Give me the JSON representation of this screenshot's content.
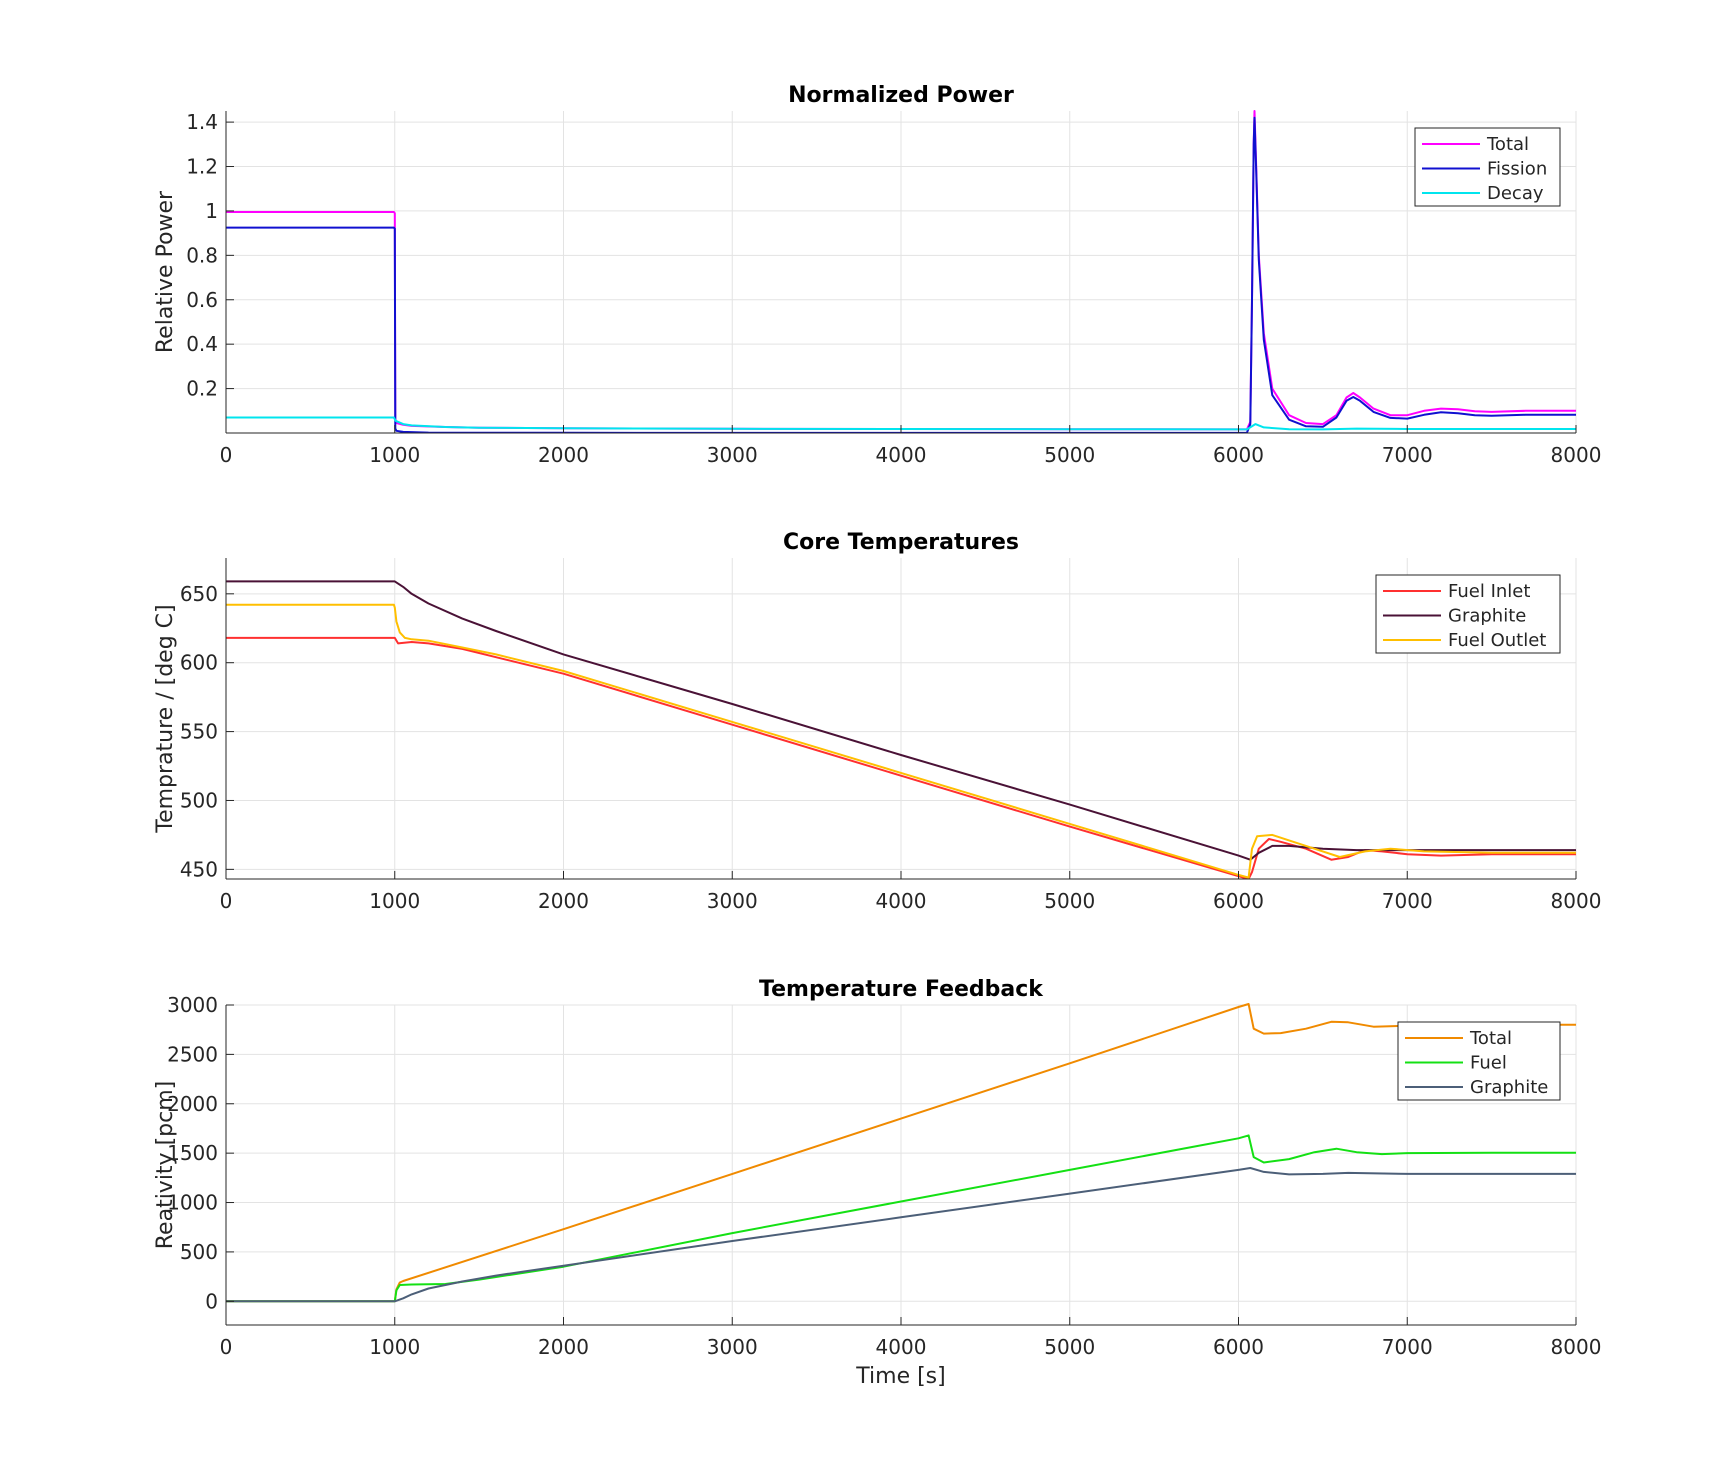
{
  "chart_data": [
    {
      "type": "line",
      "title": "Normalized Power",
      "xlabel": "",
      "ylabel": "Relative Power",
      "xlim": [
        0,
        8000
      ],
      "ylim": [
        0,
        1.45
      ],
      "xticks": [
        0,
        1000,
        2000,
        3000,
        4000,
        5000,
        6000,
        7000,
        8000
      ],
      "yticks": [
        0.2,
        0.4,
        0.6,
        0.8,
        1,
        1.2,
        1.4
      ],
      "ytick_labels": [
        "0.2",
        "0.4",
        "0.6",
        "0.8",
        "1",
        "1.2",
        "1.4"
      ],
      "grid": true,
      "legend_position": "top-right",
      "series": [
        {
          "name": "Total",
          "color": "#ff00ff",
          "points": [
            [
              0,
              0.995
            ],
            [
              995,
              0.995
            ],
            [
              1000,
              0.99
            ],
            [
              1003,
              0.06
            ],
            [
              1010,
              0.045
            ],
            [
              1050,
              0.037
            ],
            [
              1100,
              0.032
            ],
            [
              1300,
              0.027
            ],
            [
              1500,
              0.024
            ],
            [
              2000,
              0.021
            ],
            [
              3000,
              0.019
            ],
            [
              4000,
              0.018
            ],
            [
              5000,
              0.017
            ],
            [
              6000,
              0.016
            ],
            [
              6050,
              0.016
            ],
            [
              6070,
              0.05
            ],
            [
              6080,
              0.6
            ],
            [
              6090,
              1.3
            ],
            [
              6095,
              1.45
            ],
            [
              6105,
              1.2
            ],
            [
              6120,
              0.8
            ],
            [
              6150,
              0.45
            ],
            [
              6200,
              0.2
            ],
            [
              6300,
              0.08
            ],
            [
              6400,
              0.045
            ],
            [
              6500,
              0.04
            ],
            [
              6580,
              0.08
            ],
            [
              6640,
              0.16
            ],
            [
              6680,
              0.18
            ],
            [
              6720,
              0.16
            ],
            [
              6800,
              0.11
            ],
            [
              6900,
              0.08
            ],
            [
              7000,
              0.08
            ],
            [
              7100,
              0.1
            ],
            [
              7200,
              0.11
            ],
            [
              7300,
              0.107
            ],
            [
              7400,
              0.098
            ],
            [
              7500,
              0.095
            ],
            [
              7700,
              0.1
            ],
            [
              8000,
              0.1
            ]
          ]
        },
        {
          "name": "Fission",
          "color": "#1010d0",
          "points": [
            [
              0,
              0.925
            ],
            [
              995,
              0.925
            ],
            [
              1000,
              0.92
            ],
            [
              1003,
              0.02
            ],
            [
              1010,
              0.01
            ],
            [
              1050,
              0.005
            ],
            [
              1200,
              0.002
            ],
            [
              2000,
              0.001
            ],
            [
              5000,
              0.0005
            ],
            [
              6050,
              0.001
            ],
            [
              6070,
              0.04
            ],
            [
              6080,
              0.6
            ],
            [
              6090,
              1.3
            ],
            [
              6095,
              1.42
            ],
            [
              6105,
              1.18
            ],
            [
              6120,
              0.78
            ],
            [
              6150,
              0.42
            ],
            [
              6200,
              0.17
            ],
            [
              6300,
              0.06
            ],
            [
              6400,
              0.03
            ],
            [
              6500,
              0.028
            ],
            [
              6580,
              0.07
            ],
            [
              6640,
              0.145
            ],
            [
              6680,
              0.162
            ],
            [
              6720,
              0.145
            ],
            [
              6800,
              0.095
            ],
            [
              6900,
              0.068
            ],
            [
              7000,
              0.065
            ],
            [
              7100,
              0.082
            ],
            [
              7200,
              0.093
            ],
            [
              7300,
              0.089
            ],
            [
              7400,
              0.08
            ],
            [
              7500,
              0.078
            ],
            [
              7700,
              0.082
            ],
            [
              8000,
              0.082
            ]
          ]
        },
        {
          "name": "Decay",
          "color": "#00e5ee",
          "points": [
            [
              0,
              0.07
            ],
            [
              995,
              0.07
            ],
            [
              1005,
              0.055
            ],
            [
              1050,
              0.04
            ],
            [
              1100,
              0.034
            ],
            [
              1300,
              0.027
            ],
            [
              1500,
              0.024
            ],
            [
              2000,
              0.021
            ],
            [
              3000,
              0.019
            ],
            [
              4000,
              0.018
            ],
            [
              5000,
              0.017
            ],
            [
              6050,
              0.016
            ],
            [
              6100,
              0.04
            ],
            [
              6150,
              0.025
            ],
            [
              6300,
              0.017
            ],
            [
              6500,
              0.016
            ],
            [
              6700,
              0.02
            ],
            [
              7000,
              0.018
            ],
            [
              8000,
              0.018
            ]
          ]
        }
      ]
    },
    {
      "type": "line",
      "title": "Core Temperatures",
      "xlabel": "",
      "ylabel": "Temprature / [deg C]",
      "xlim": [
        0,
        8000
      ],
      "ylim": [
        443,
        676
      ],
      "xticks": [
        0,
        1000,
        2000,
        3000,
        4000,
        5000,
        6000,
        7000,
        8000
      ],
      "yticks": [
        450,
        500,
        550,
        600,
        650
      ],
      "ytick_labels": [
        "450",
        "500",
        "550",
        "600",
        "650"
      ],
      "grid": true,
      "legend_position": "top-right",
      "series": [
        {
          "name": "Fuel Inlet",
          "color": "#ff3030",
          "points": [
            [
              0,
              618
            ],
            [
              1000,
              618
            ],
            [
              1020,
              614
            ],
            [
              1100,
              615
            ],
            [
              1200,
              614
            ],
            [
              1400,
              610
            ],
            [
              1600,
              604
            ],
            [
              2000,
              592
            ],
            [
              3000,
              555
            ],
            [
              4000,
              518
            ],
            [
              5000,
              481
            ],
            [
              6000,
              445
            ],
            [
              6060,
              443
            ],
            [
              6080,
              448
            ],
            [
              6120,
              465
            ],
            [
              6180,
              472
            ],
            [
              6250,
              470
            ],
            [
              6400,
              465
            ],
            [
              6550,
              457
            ],
            [
              6650,
              459
            ],
            [
              6750,
              464
            ],
            [
              6850,
              463
            ],
            [
              7000,
              461
            ],
            [
              7200,
              460
            ],
            [
              7500,
              461
            ],
            [
              8000,
              461
            ]
          ]
        },
        {
          "name": "Graphite",
          "color": "#4a1236",
          "points": [
            [
              0,
              659
            ],
            [
              1000,
              659
            ],
            [
              1050,
              655
            ],
            [
              1100,
              650
            ],
            [
              1200,
              643
            ],
            [
              1400,
              632
            ],
            [
              1600,
              623
            ],
            [
              2000,
              606
            ],
            [
              3000,
              570
            ],
            [
              4000,
              533
            ],
            [
              5000,
              497
            ],
            [
              6000,
              460
            ],
            [
              6070,
              457
            ],
            [
              6120,
              462
            ],
            [
              6200,
              467
            ],
            [
              6300,
              467
            ],
            [
              6500,
              465
            ],
            [
              6700,
              464
            ],
            [
              7000,
              464
            ],
            [
              8000,
              464
            ]
          ]
        },
        {
          "name": "Fuel Outlet",
          "color": "#ffbf00",
          "points": [
            [
              0,
              642
            ],
            [
              995,
              642
            ],
            [
              1000,
              640
            ],
            [
              1010,
              630
            ],
            [
              1030,
              622
            ],
            [
              1060,
              618
            ],
            [
              1100,
              617
            ],
            [
              1200,
              616
            ],
            [
              1400,
              611
            ],
            [
              1600,
              606
            ],
            [
              2000,
              594
            ],
            [
              3000,
              557
            ],
            [
              4000,
              520
            ],
            [
              5000,
              483
            ],
            [
              6000,
              446
            ],
            [
              6060,
              444
            ],
            [
              6080,
              465
            ],
            [
              6110,
              474
            ],
            [
              6200,
              475
            ],
            [
              6300,
              471
            ],
            [
              6450,
              465
            ],
            [
              6600,
              459
            ],
            [
              6750,
              463
            ],
            [
              6900,
              465
            ],
            [
              7100,
              463
            ],
            [
              7500,
              462
            ],
            [
              8000,
              462
            ]
          ]
        }
      ]
    },
    {
      "type": "line",
      "title": "Temperature Feedback",
      "xlabel": "Time [s]",
      "ylabel": "Reativity [pcm]",
      "xlim": [
        0,
        8000
      ],
      "ylim": [
        -240,
        3000
      ],
      "xticks": [
        0,
        1000,
        2000,
        3000,
        4000,
        5000,
        6000,
        7000,
        8000
      ],
      "yticks": [
        0,
        500,
        1000,
        1500,
        2000,
        2500,
        3000
      ],
      "ytick_labels": [
        "0",
        "500",
        "1000",
        "1500",
        "2000",
        "2500",
        "3000"
      ],
      "grid": true,
      "legend_position": "top-right",
      "series": [
        {
          "name": "Total",
          "color": "#f08a00",
          "points": [
            [
              0,
              0
            ],
            [
              1000,
              0
            ],
            [
              1010,
              120
            ],
            [
              1030,
              190
            ],
            [
              1050,
              205
            ],
            [
              2000,
              730
            ],
            [
              3000,
              1290
            ],
            [
              4000,
              1850
            ],
            [
              5000,
              2410
            ],
            [
              6000,
              2980
            ],
            [
              6060,
              3010
            ],
            [
              6090,
              2760
            ],
            [
              6150,
              2710
            ],
            [
              6250,
              2715
            ],
            [
              6400,
              2760
            ],
            [
              6550,
              2830
            ],
            [
              6650,
              2825
            ],
            [
              6800,
              2780
            ],
            [
              7000,
              2790
            ],
            [
              7500,
              2800
            ],
            [
              8000,
              2800
            ]
          ]
        },
        {
          "name": "Fuel",
          "color": "#14e014",
          "points": [
            [
              0,
              0
            ],
            [
              1000,
              0
            ],
            [
              1010,
              110
            ],
            [
              1030,
              165
            ],
            [
              1100,
              170
            ],
            [
              1300,
              175
            ],
            [
              1500,
              220
            ],
            [
              2000,
              350
            ],
            [
              3000,
              690
            ],
            [
              4000,
              1010
            ],
            [
              5000,
              1330
            ],
            [
              6000,
              1650
            ],
            [
              6060,
              1680
            ],
            [
              6090,
              1460
            ],
            [
              6150,
              1405
            ],
            [
              6300,
              1440
            ],
            [
              6450,
              1510
            ],
            [
              6580,
              1545
            ],
            [
              6700,
              1510
            ],
            [
              6850,
              1490
            ],
            [
              7000,
              1500
            ],
            [
              7500,
              1505
            ],
            [
              8000,
              1505
            ]
          ]
        },
        {
          "name": "Graphite",
          "color": "#4c5f78",
          "points": [
            [
              0,
              0
            ],
            [
              1000,
              0
            ],
            [
              1050,
              30
            ],
            [
              1100,
              70
            ],
            [
              1200,
              130
            ],
            [
              1400,
              200
            ],
            [
              1600,
              260
            ],
            [
              2000,
              360
            ],
            [
              3000,
              610
            ],
            [
              4000,
              850
            ],
            [
              5000,
              1090
            ],
            [
              6000,
              1330
            ],
            [
              6070,
              1350
            ],
            [
              6150,
              1310
            ],
            [
              6300,
              1285
            ],
            [
              6500,
              1290
            ],
            [
              6650,
              1300
            ],
            [
              7000,
              1290
            ],
            [
              8000,
              1290
            ]
          ]
        }
      ]
    }
  ]
}
